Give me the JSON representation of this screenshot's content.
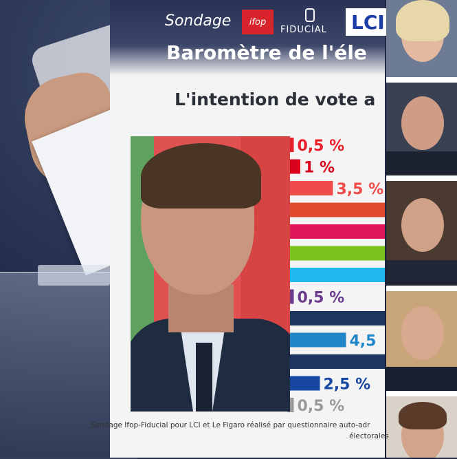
{
  "header": {
    "sondage": "Sondage",
    "ifop": "ifop",
    "fiducial": "FIDUCIAL",
    "lci": "LCI",
    "title": "Baromètre de l'éle",
    "subtitle": "L'intention de vote a"
  },
  "chart_data": {
    "type": "bar",
    "orientation": "horizontal",
    "series": [
      {
        "label": "0,5 %",
        "value": 0.5,
        "color": "#e8202a"
      },
      {
        "label": "1 %",
        "value": 1,
        "color": "#d9001b"
      },
      {
        "label": "3,5 %",
        "value": 3.5,
        "color": "#f04b4b"
      },
      {
        "label": "",
        "value": null,
        "color": "#e04a2f"
      },
      {
        "label": "",
        "value": null,
        "color": "#e0165a"
      },
      {
        "label": "",
        "value": null,
        "color": "#7cc21c"
      },
      {
        "label": "",
        "value": null,
        "color": "#23b7ef"
      },
      {
        "label": "0,5 %",
        "value": 0.5,
        "color": "#6b3a8c"
      },
      {
        "label": "",
        "value": null,
        "color": "#1d3560"
      },
      {
        "label": "4,5",
        "value": 4.5,
        "color": "#1f87c8"
      },
      {
        "label": "",
        "value": null,
        "color": "#1d3560"
      },
      {
        "label": "2,5 %",
        "value": 2.5,
        "color": "#1747a0"
      },
      {
        "label": "0,5 %",
        "value": 0.5,
        "color": "#9a9a9a"
      }
    ]
  },
  "footnote": {
    "line1": "Sondage Ifop-Fiducial pour LCI et Le Figaro réalisé par questionnaire auto-adr",
    "line2": "électorales"
  }
}
